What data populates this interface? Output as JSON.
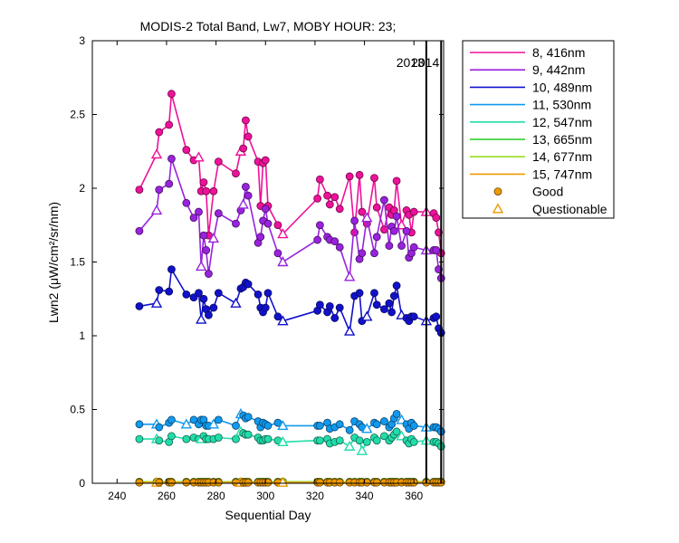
{
  "chart_data": {
    "type": "line",
    "title": "MODIS-2 Total Band, Lw7, MOBY HOUR: 23;",
    "xlabel": "Sequential Day",
    "ylabel": "Lwn2 (μW/cm²/sr/nm)",
    "xlim": [
      230,
      372
    ],
    "ylim": [
      0,
      3
    ],
    "xticks": [
      "240",
      "260",
      "280",
      "300",
      "320",
      "340",
      "360"
    ],
    "yticks": [
      "0",
      "0.5",
      "1",
      "1.5",
      "2",
      "2.5",
      "3"
    ],
    "grid": false,
    "legend_position": "outside-top-right",
    "year_markers": [
      {
        "label": "2013",
        "x": 365
      },
      {
        "label": "2014",
        "x": 371
      }
    ],
    "legend_items": [
      {
        "label": "8, 416nm",
        "color": "#ee1199",
        "marker": "line"
      },
      {
        "label": "9, 442nm",
        "color": "#9922dd",
        "marker": "line"
      },
      {
        "label": "10, 489nm",
        "color": "#1111cc",
        "marker": "line"
      },
      {
        "label": "11, 530nm",
        "color": "#1199ee",
        "marker": "line"
      },
      {
        "label": "12, 547nm",
        "color": "#22ddaa",
        "marker": "line"
      },
      {
        "label": "13, 665nm",
        "color": "#22cc22",
        "marker": "line"
      },
      {
        "label": "14, 677nm",
        "color": "#99dd22",
        "marker": "line"
      },
      {
        "label": "15, 747nm",
        "color": "#ee9900",
        "marker": "line"
      },
      {
        "label": "Good",
        "color": "#ee9900",
        "marker": "circle"
      },
      {
        "label": "Questionable",
        "color": "#ee9900",
        "marker": "triangle"
      }
    ],
    "x": [
      249,
      256,
      257,
      261,
      262,
      268,
      271,
      273,
      274,
      275,
      276,
      277,
      279,
      281,
      288,
      290,
      291,
      292,
      293,
      297,
      298,
      299,
      300,
      301,
      305,
      307,
      321,
      322,
      325,
      326,
      328,
      330,
      334,
      336,
      338,
      339,
      341,
      344,
      345,
      348,
      350,
      351,
      352,
      353,
      355,
      357,
      358,
      359,
      360,
      365,
      368,
      369,
      370,
      371
    ],
    "series": [
      {
        "name": "8, 416nm",
        "color": "#ee1199",
        "values": [
          1.99,
          2.23,
          2.38,
          2.43,
          2.64,
          2.26,
          2.19,
          2.21,
          1.98,
          2.04,
          1.98,
          1.68,
          1.98,
          2.18,
          2.1,
          2.25,
          2.27,
          2.46,
          2.35,
          2.18,
          1.88,
          2.17,
          2.19,
          1.88,
          1.75,
          1.69,
          1.93,
          2.06,
          1.95,
          1.89,
          1.94,
          1.86,
          2.08,
          1.7,
          2.09,
          1.84,
          1.76,
          2.07,
          1.87,
          1.72,
          1.87,
          1.82,
          1.85,
          2.05,
          1.75,
          1.85,
          1.82,
          1.7,
          1.84,
          1.84,
          1.83,
          1.8,
          1.7,
          1.56
        ],
        "questionable_idx": [
          1,
          7,
          15,
          25,
          44,
          49
        ]
      },
      {
        "name": "9, 442nm",
        "color": "#9922dd",
        "values": [
          1.71,
          1.85,
          1.99,
          2.03,
          2.2,
          1.9,
          1.8,
          1.84,
          1.47,
          1.68,
          1.58,
          1.42,
          1.66,
          1.83,
          1.76,
          1.85,
          1.89,
          2.01,
          1.95,
          1.63,
          1.67,
          1.78,
          1.86,
          1.76,
          1.56,
          1.5,
          1.65,
          1.75,
          1.67,
          1.65,
          1.64,
          1.6,
          1.4,
          1.78,
          1.52,
          1.56,
          1.8,
          1.56,
          1.67,
          1.92,
          1.61,
          1.74,
          1.71,
          1.81,
          1.61,
          1.71,
          1.53,
          1.56,
          1.6,
          1.58,
          1.58,
          1.58,
          1.45,
          1.39
        ],
        "questionable_idx": [
          1,
          8,
          12,
          16,
          25,
          32,
          36,
          49
        ]
      },
      {
        "name": "10, 489nm",
        "color": "#1111cc",
        "values": [
          1.2,
          1.22,
          1.31,
          1.3,
          1.45,
          1.28,
          1.26,
          1.29,
          1.11,
          1.25,
          1.18,
          1.14,
          1.19,
          1.29,
          1.22,
          1.32,
          1.33,
          1.36,
          1.35,
          1.28,
          1.19,
          1.16,
          1.19,
          1.29,
          1.13,
          1.1,
          1.17,
          1.21,
          1.16,
          1.2,
          1.12,
          1.19,
          1.03,
          1.27,
          1.29,
          1.1,
          1.13,
          1.29,
          1.21,
          1.18,
          1.22,
          1.16,
          1.27,
          1.34,
          1.14,
          1.12,
          1.1,
          1.13,
          1.13,
          1.1,
          1.12,
          1.13,
          1.05,
          1.02
        ],
        "questionable_idx": [
          1,
          8,
          14,
          25,
          32,
          36,
          44,
          49
        ]
      },
      {
        "name": "11, 530nm",
        "color": "#1199ee",
        "values": [
          0.4,
          0.4,
          0.38,
          0.41,
          0.43,
          0.4,
          0.43,
          0.4,
          0.43,
          0.43,
          0.39,
          0.39,
          0.4,
          0.43,
          0.39,
          0.47,
          0.46,
          0.44,
          0.45,
          0.42,
          0.38,
          0.41,
          0.4,
          0.39,
          0.41,
          0.39,
          0.39,
          0.39,
          0.41,
          0.37,
          0.38,
          0.4,
          0.36,
          0.42,
          0.4,
          0.38,
          0.37,
          0.41,
          0.4,
          0.42,
          0.38,
          0.4,
          0.44,
          0.47,
          0.43,
          0.4,
          0.37,
          0.41,
          0.39,
          0.38,
          0.38,
          0.38,
          0.37,
          0.35
        ],
        "questionable_idx": [
          1,
          5,
          12,
          15,
          25,
          36,
          44,
          49
        ]
      },
      {
        "name": "12, 547nm",
        "color": "#22ddaa",
        "values": [
          0.3,
          0.3,
          0.29,
          0.28,
          0.32,
          0.3,
          0.31,
          0.3,
          0.3,
          0.32,
          0.3,
          0.3,
          0.3,
          0.31,
          0.3,
          0.35,
          0.34,
          0.33,
          0.33,
          0.31,
          0.29,
          0.29,
          0.3,
          0.3,
          0.29,
          0.28,
          0.29,
          0.29,
          0.3,
          0.27,
          0.28,
          0.29,
          0.25,
          0.31,
          0.29,
          0.22,
          0.28,
          0.31,
          0.29,
          0.32,
          0.29,
          0.31,
          0.33,
          0.35,
          0.32,
          0.29,
          0.27,
          0.3,
          0.28,
          0.29,
          0.28,
          0.28,
          0.27,
          0.25
        ],
        "questionable_idx": [
          1,
          8,
          15,
          25,
          32,
          35,
          44,
          49
        ]
      },
      {
        "name": "13, 665nm",
        "color": "#22cc22",
        "values": [
          0.01,
          0.01,
          0.01,
          0.01,
          0.01,
          0.01,
          0.01,
          0.01,
          0.01,
          0.01,
          0.01,
          0.01,
          0.01,
          0.01,
          0.01,
          0.01,
          0.01,
          0.01,
          0.01,
          0.01,
          0.01,
          0.01,
          0.01,
          0.01,
          0.01,
          0.01,
          0.01,
          0.01,
          0.01,
          0.01,
          0.01,
          0.01,
          0.01,
          0.01,
          0.01,
          0.01,
          0.01,
          0.01,
          0.01,
          0.01,
          0.01,
          0.01,
          0.01,
          0.01,
          0.01,
          0.01,
          0.01,
          0.01,
          0.01,
          0.01,
          0.01,
          0.01,
          0.01,
          0.01
        ],
        "questionable_idx": []
      },
      {
        "name": "14, 677nm",
        "color": "#99dd22",
        "values": [
          0.01,
          0.01,
          0.01,
          0.01,
          0.01,
          0.01,
          0.01,
          0.01,
          0.01,
          0.01,
          0.01,
          0.01,
          0.01,
          0.01,
          0.01,
          0.01,
          0.01,
          0.01,
          0.01,
          0.01,
          0.01,
          0.01,
          0.01,
          0.01,
          0.01,
          0.01,
          0.01,
          0.01,
          0.01,
          0.01,
          0.01,
          0.01,
          0.01,
          0.01,
          0.01,
          0.01,
          0.01,
          0.01,
          0.01,
          0.01,
          0.01,
          0.01,
          0.01,
          0.01,
          0.01,
          0.01,
          0.01,
          0.01,
          0.01,
          0.01,
          0.01,
          0.01,
          0.01,
          0.01
        ],
        "questionable_idx": []
      },
      {
        "name": "15, 747nm",
        "color": "#ee9900",
        "values": [
          0.005,
          0.005,
          0.005,
          0.005,
          0.005,
          0.005,
          0.005,
          0.005,
          0.005,
          0.005,
          0.005,
          0.005,
          0.005,
          0.005,
          0.005,
          0.005,
          0.005,
          0.005,
          0.005,
          0.005,
          0.005,
          0.005,
          0.005,
          0.005,
          0.005,
          0.005,
          0.005,
          0.005,
          0.005,
          0.005,
          0.005,
          0.005,
          0.005,
          0.005,
          0.005,
          0.005,
          0.005,
          0.005,
          0.005,
          0.005,
          0.005,
          0.005,
          0.005,
          0.005,
          0.005,
          0.005,
          0.005,
          0.005,
          0.005,
          0.005,
          0.005,
          0.005,
          0.005,
          0.005
        ],
        "questionable_idx": [
          1,
          15,
          25
        ]
      }
    ]
  }
}
